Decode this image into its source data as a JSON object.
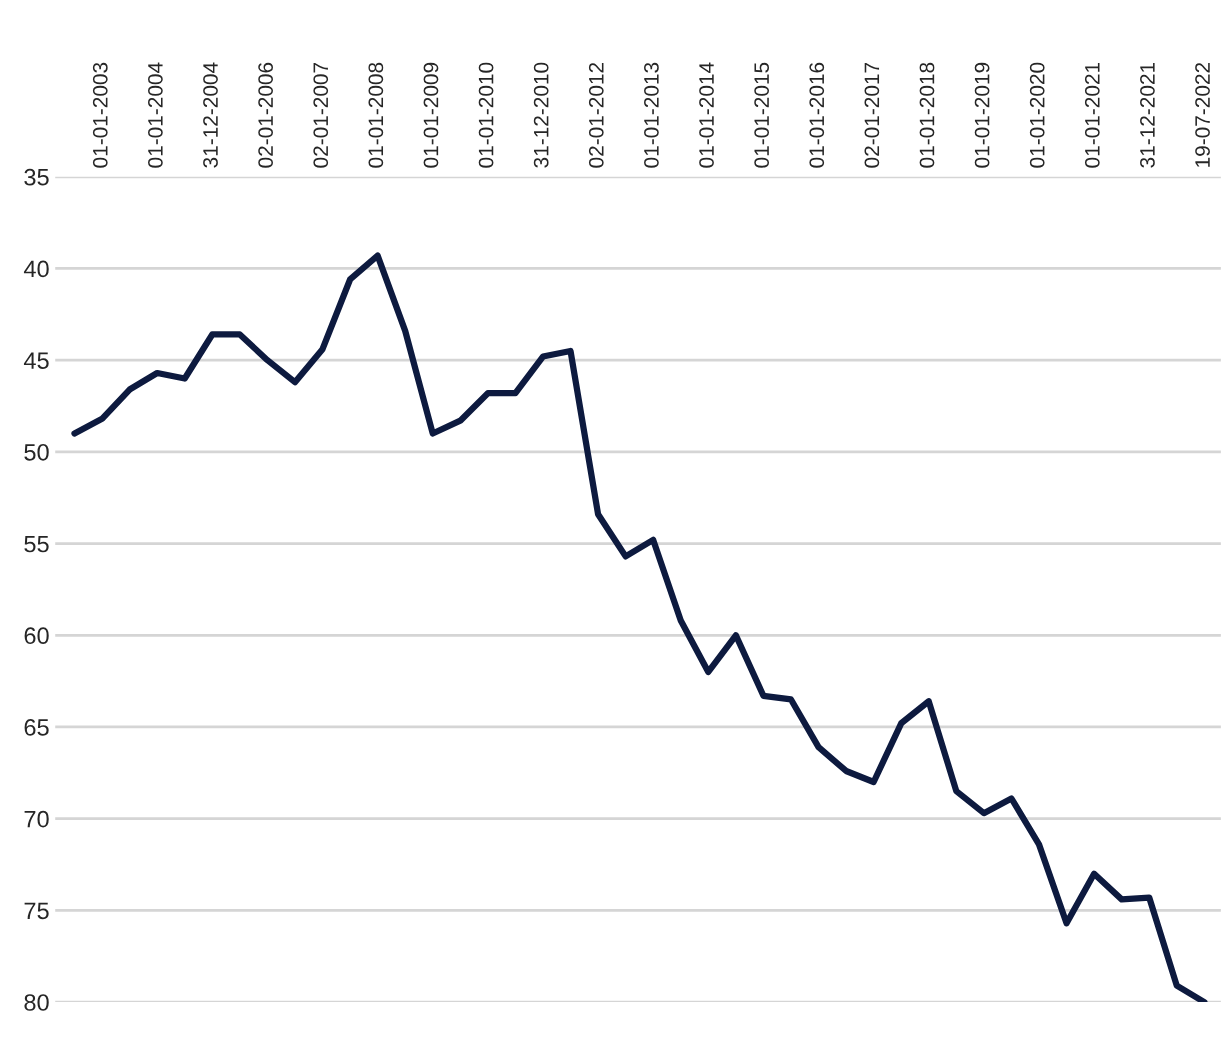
{
  "chart_data": {
    "type": "line",
    "categories": [
      null,
      "01-01-2003",
      null,
      "01-01-2004",
      null,
      "31-12-2004",
      null,
      "02-01-2006",
      null,
      "02-01-2007",
      null,
      "01-01-2008",
      null,
      "01-01-2009",
      null,
      "01-01-2010",
      null,
      "31-12-2010",
      null,
      "02-01-2012",
      null,
      "01-01-2013",
      null,
      "01-01-2014",
      null,
      "01-01-2015",
      null,
      "01-01-2016",
      null,
      "02-01-2017",
      null,
      "01-01-2018",
      null,
      "01-01-2019",
      null,
      "01-01-2020",
      null,
      "01-01-2021",
      null,
      "31-12-2021",
      null,
      "19-07-2022"
    ],
    "series": [
      {
        "color": "#0d1a3f",
        "values": [
          49.0,
          48.2,
          46.6,
          45.7,
          46.0,
          43.6,
          43.6,
          45.0,
          46.2,
          44.4,
          40.6,
          39.3,
          43.4,
          49.0,
          48.3,
          46.8,
          46.8,
          44.8,
          44.5,
          53.4,
          55.7,
          54.8,
          59.2,
          62.0,
          60.0,
          63.3,
          63.5,
          66.1,
          67.4,
          68.0,
          64.8,
          63.6,
          68.5,
          69.7,
          68.9,
          71.4,
          75.7,
          73.0,
          74.4,
          74.3,
          79.1,
          80.0
        ]
      }
    ],
    "ylim": [
      80,
      35
    ],
    "yticks": [
      35,
      40,
      45,
      50,
      55,
      60,
      65,
      70,
      75,
      80
    ],
    "grid": "y",
    "marker": "none",
    "line_style": "solid"
  }
}
